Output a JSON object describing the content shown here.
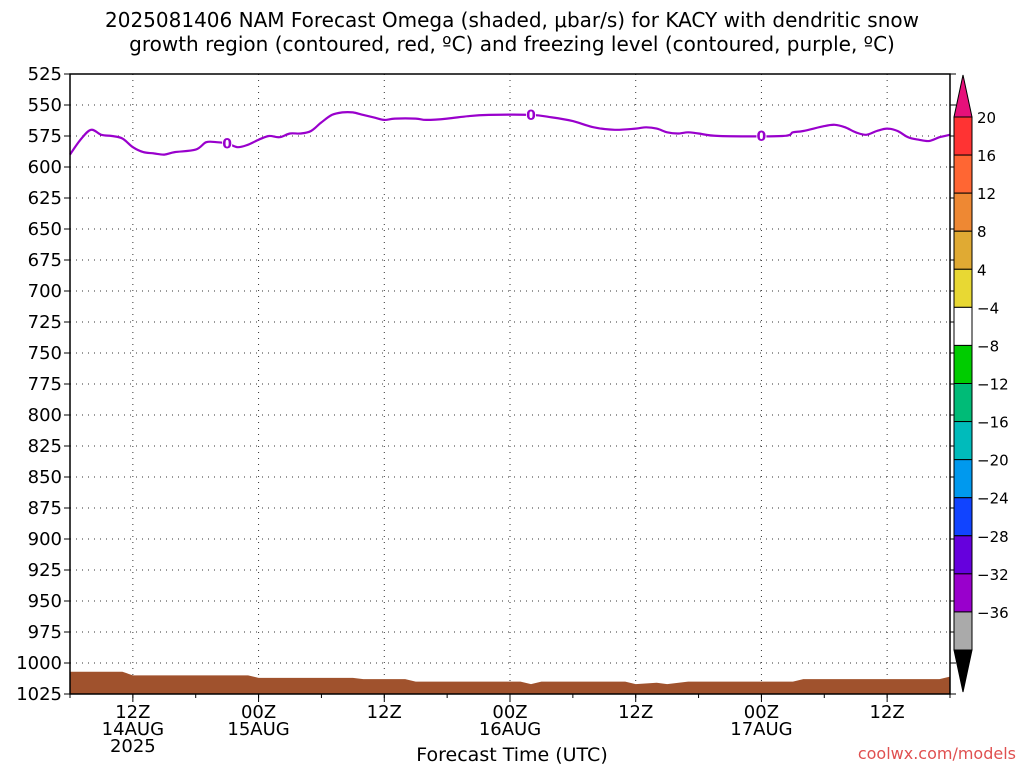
{
  "chart_data": {
    "type": "heatmap",
    "title_line1": "2025081406 NAM Forecast Omega (shaded, μbar/s) for KACY with dendritic snow",
    "title_line2": "growth region (contoured, red, ºC) and freezing level (contoured, purple, ºC)",
    "xlabel": "Forecast Time (UTC)",
    "credit": "coolwx.com/models",
    "grid": true,
    "y_axis": {
      "scale": "pressure",
      "inverted": true,
      "range": [
        525,
        1025
      ],
      "ticks": [
        525,
        550,
        575,
        600,
        625,
        650,
        675,
        700,
        725,
        750,
        775,
        800,
        825,
        850,
        875,
        900,
        925,
        950,
        975,
        1000,
        1025
      ]
    },
    "x_axis": {
      "range": [
        "2025-08-14 06Z",
        "2025-08-17 18Z"
      ],
      "ticks": [
        {
          "time": "2025-08-14 12Z",
          "lines": [
            "12Z",
            "14AUG",
            "2025"
          ]
        },
        {
          "time": "2025-08-15 00Z",
          "lines": [
            "00Z",
            "15AUG"
          ]
        },
        {
          "time": "2025-08-15 12Z",
          "lines": [
            "12Z"
          ]
        },
        {
          "time": "2025-08-16 00Z",
          "lines": [
            "00Z",
            "16AUG"
          ]
        },
        {
          "time": "2025-08-16 12Z",
          "lines": [
            "12Z"
          ]
        },
        {
          "time": "2025-08-17 00Z",
          "lines": [
            "00Z",
            "17AUG"
          ]
        },
        {
          "time": "2025-08-17 12Z",
          "lines": [
            "12Z"
          ]
        }
      ]
    },
    "freezing_level": {
      "name": "0",
      "color": "#9900cc",
      "label_times": [
        "2025-08-14 21Z",
        "2025-08-16 02Z",
        "2025-08-17 00Z"
      ],
      "points": [
        {
          "t": "2025-08-14 06Z",
          "p": 590
        },
        {
          "t": "2025-08-14 07Z",
          "p": 578
        },
        {
          "t": "2025-08-14 08Z",
          "p": 570
        },
        {
          "t": "2025-08-14 09Z",
          "p": 574
        },
        {
          "t": "2025-08-14 10Z",
          "p": 575
        },
        {
          "t": "2025-08-14 11Z",
          "p": 577
        },
        {
          "t": "2025-08-14 12Z",
          "p": 584
        },
        {
          "t": "2025-08-14 13Z",
          "p": 588
        },
        {
          "t": "2025-08-14 14Z",
          "p": 589
        },
        {
          "t": "2025-08-14 15Z",
          "p": 590
        },
        {
          "t": "2025-08-14 16Z",
          "p": 588
        },
        {
          "t": "2025-08-14 18Z",
          "p": 586
        },
        {
          "t": "2025-08-14 19Z",
          "p": 580
        },
        {
          "t": "2025-08-14 20Z",
          "p": 580
        },
        {
          "t": "2025-08-14 21Z",
          "p": 581
        },
        {
          "t": "2025-08-14 22Z",
          "p": 584
        },
        {
          "t": "2025-08-14 23Z",
          "p": 582
        },
        {
          "t": "2025-08-15 00Z",
          "p": 578
        },
        {
          "t": "2025-08-15 01Z",
          "p": 575
        },
        {
          "t": "2025-08-15 02Z",
          "p": 576
        },
        {
          "t": "2025-08-15 03Z",
          "p": 573
        },
        {
          "t": "2025-08-15 04Z",
          "p": 573
        },
        {
          "t": "2025-08-15 05Z",
          "p": 571
        },
        {
          "t": "2025-08-15 06Z",
          "p": 564
        },
        {
          "t": "2025-08-15 07Z",
          "p": 558
        },
        {
          "t": "2025-08-15 08Z",
          "p": 556
        },
        {
          "t": "2025-08-15 09Z",
          "p": 556
        },
        {
          "t": "2025-08-15 10Z",
          "p": 558
        },
        {
          "t": "2025-08-15 11Z",
          "p": 560
        },
        {
          "t": "2025-08-15 12Z",
          "p": 562
        },
        {
          "t": "2025-08-15 13Z",
          "p": 561
        },
        {
          "t": "2025-08-15 15Z",
          "p": 561
        },
        {
          "t": "2025-08-15 16Z",
          "p": 562
        },
        {
          "t": "2025-08-15 18Z",
          "p": 561
        },
        {
          "t": "2025-08-15 20Z",
          "p": 559
        },
        {
          "t": "2025-08-15 22Z",
          "p": 558
        },
        {
          "t": "2025-08-16 02Z",
          "p": 558
        },
        {
          "t": "2025-08-16 04Z",
          "p": 560
        },
        {
          "t": "2025-08-16 06Z",
          "p": 563
        },
        {
          "t": "2025-08-16 08Z",
          "p": 568
        },
        {
          "t": "2025-08-16 10Z",
          "p": 570
        },
        {
          "t": "2025-08-16 12Z",
          "p": 569
        },
        {
          "t": "2025-08-16 13Z",
          "p": 568
        },
        {
          "t": "2025-08-16 14Z",
          "p": 569
        },
        {
          "t": "2025-08-16 15Z",
          "p": 572
        },
        {
          "t": "2025-08-16 16Z",
          "p": 573
        },
        {
          "t": "2025-08-16 17Z",
          "p": 572
        },
        {
          "t": "2025-08-16 18Z",
          "p": 573
        },
        {
          "t": "2025-08-16 20Z",
          "p": 575
        },
        {
          "t": "2025-08-17 02Z",
          "p": 575
        },
        {
          "t": "2025-08-17 03Z",
          "p": 572
        },
        {
          "t": "2025-08-17 04Z",
          "p": 571
        },
        {
          "t": "2025-08-17 06Z",
          "p": 567
        },
        {
          "t": "2025-08-17 07Z",
          "p": 566
        },
        {
          "t": "2025-08-17 08Z",
          "p": 568
        },
        {
          "t": "2025-08-17 09Z",
          "p": 572
        },
        {
          "t": "2025-08-17 10Z",
          "p": 574
        },
        {
          "t": "2025-08-17 11Z",
          "p": 571
        },
        {
          "t": "2025-08-17 12Z",
          "p": 569
        },
        {
          "t": "2025-08-17 13Z",
          "p": 571
        },
        {
          "t": "2025-08-17 14Z",
          "p": 576
        },
        {
          "t": "2025-08-17 15Z",
          "p": 578
        },
        {
          "t": "2025-08-17 16Z",
          "p": 579
        },
        {
          "t": "2025-08-17 17Z",
          "p": 576
        },
        {
          "t": "2025-08-17 18Z",
          "p": 574
        }
      ]
    },
    "ground": {
      "color": "#a0522d",
      "points": [
        {
          "t": "2025-08-14 06Z",
          "p": 1007
        },
        {
          "t": "2025-08-14 11Z",
          "p": 1007
        },
        {
          "t": "2025-08-14 12Z",
          "p": 1010
        },
        {
          "t": "2025-08-14 23Z",
          "p": 1010
        },
        {
          "t": "2025-08-15 00Z",
          "p": 1012
        },
        {
          "t": "2025-08-15 09Z",
          "p": 1012
        },
        {
          "t": "2025-08-15 10Z",
          "p": 1013
        },
        {
          "t": "2025-08-15 14Z",
          "p": 1013
        },
        {
          "t": "2025-08-15 15Z",
          "p": 1015
        },
        {
          "t": "2025-08-16 01Z",
          "p": 1015
        },
        {
          "t": "2025-08-16 02Z",
          "p": 1017
        },
        {
          "t": "2025-08-16 03Z",
          "p": 1015
        },
        {
          "t": "2025-08-16 11Z",
          "p": 1015
        },
        {
          "t": "2025-08-16 12Z",
          "p": 1017
        },
        {
          "t": "2025-08-16 14Z",
          "p": 1016
        },
        {
          "t": "2025-08-16 15Z",
          "p": 1017
        },
        {
          "t": "2025-08-16 17Z",
          "p": 1015
        },
        {
          "t": "2025-08-17 03Z",
          "p": 1015
        },
        {
          "t": "2025-08-17 04Z",
          "p": 1013
        },
        {
          "t": "2025-08-17 17Z",
          "p": 1013
        },
        {
          "t": "2025-08-17 18Z",
          "p": 1011
        }
      ]
    },
    "colorbar": {
      "labels": [
        "20",
        "16",
        "12",
        "8",
        "4",
        "−4",
        "−8",
        "−12",
        "−16",
        "−20",
        "−24",
        "−28",
        "−32",
        "−36"
      ],
      "colors": [
        "#ff3333",
        "#ff6633",
        "#ee8833",
        "#e0aa33",
        "#e8d833",
        "#ffffff",
        "#00cc00",
        "#00bb77",
        "#00bbbb",
        "#0099ee",
        "#1144ff",
        "#6600dd",
        "#9900cc",
        "#aaaaaa"
      ],
      "top_arrow_color": "#e6107a",
      "bottom_arrow_color": "#000000"
    }
  }
}
